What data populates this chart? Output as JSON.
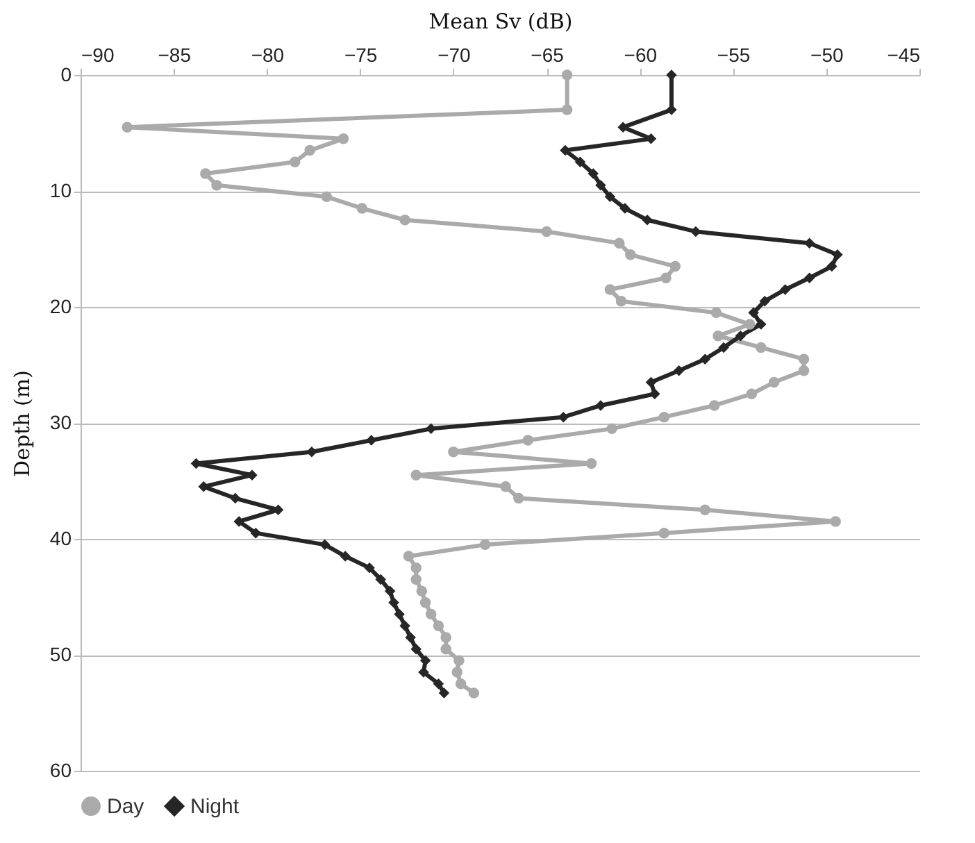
{
  "chart_data": {
    "type": "line",
    "xlabel": "Mean Sv (dB)",
    "ylabel": "Depth (m)",
    "xlim": [
      -90,
      -45
    ],
    "xticks": [
      -90,
      -85,
      -80,
      -75,
      -70,
      -65,
      -60,
      -55,
      -50,
      -45
    ],
    "ylim": [
      60,
      0
    ],
    "yticks": [
      0,
      10,
      20,
      30,
      40,
      50,
      60
    ],
    "grid": "y",
    "legend": "bottom",
    "series": [
      {
        "name": "Day",
        "color": "#aaaaaa",
        "marker": "circle",
        "x": [
          -63.9,
          -63.9,
          -87.5,
          -75.9,
          -77.7,
          -78.5,
          -83.3,
          -82.7,
          -76.8,
          -74.9,
          -72.6,
          -65.0,
          -61.1,
          -60.5,
          -58.1,
          -58.6,
          -61.6,
          -61.0,
          -55.9,
          -54.1,
          -55.8,
          -53.5,
          -51.2,
          -51.2,
          -52.8,
          -54.0,
          -56.0,
          -58.7,
          -61.5,
          -66.0,
          -70.0,
          -62.6,
          -72.0,
          -67.2,
          -66.5,
          -56.5,
          -49.5,
          -58.7,
          -68.3,
          -72.4,
          -72.0,
          -72.0,
          -71.7,
          -71.5,
          -71.2,
          -70.8,
          -70.4,
          -70.4,
          -69.7,
          -69.8,
          -69.6,
          -68.9
        ],
        "values": [
          0,
          3,
          4.5,
          5.5,
          6.5,
          7.5,
          8.5,
          9.5,
          10.5,
          11.5,
          12.5,
          13.5,
          14.5,
          15.5,
          16.5,
          17.5,
          18.5,
          19.5,
          20.5,
          21.5,
          22.5,
          23.5,
          24.5,
          25.5,
          26.5,
          27.5,
          28.5,
          29.5,
          30.5,
          31.5,
          32.5,
          33.5,
          34.5,
          35.5,
          36.5,
          37.5,
          38.5,
          39.5,
          40.5,
          41.5,
          42.5,
          43.5,
          44.5,
          45.5,
          46.5,
          47.5,
          48.5,
          49.5,
          50.5,
          51.5,
          52.5,
          53.3
        ]
      },
      {
        "name": "Night",
        "color": "#262626",
        "marker": "diamond",
        "x": [
          -58.3,
          -58.3,
          -60.9,
          -59.4,
          -64.0,
          -63.2,
          -62.5,
          -62.1,
          -61.6,
          -60.8,
          -59.6,
          -57.0,
          -50.9,
          -49.4,
          -49.7,
          -50.9,
          -52.2,
          -53.3,
          -53.9,
          -53.5,
          -54.6,
          -55.5,
          -56.5,
          -57.9,
          -59.4,
          -59.2,
          -62.1,
          -64.1,
          -71.2,
          -74.4,
          -77.6,
          -83.8,
          -80.8,
          -83.4,
          -81.7,
          -79.4,
          -81.5,
          -80.6,
          -76.9,
          -75.8,
          -74.5,
          -73.9,
          -73.4,
          -73.2,
          -72.9,
          -72.6,
          -72.3,
          -72.0,
          -71.5,
          -71.6,
          -70.8,
          -70.5
        ],
        "values": [
          0,
          3,
          4.5,
          5.5,
          6.5,
          7.5,
          8.5,
          9.5,
          10.5,
          11.5,
          12.5,
          13.5,
          14.5,
          15.5,
          16.5,
          17.5,
          18.5,
          19.5,
          20.5,
          21.5,
          22.5,
          23.5,
          24.5,
          25.5,
          26.5,
          27.5,
          28.5,
          29.5,
          30.5,
          31.5,
          32.5,
          33.5,
          34.5,
          35.5,
          36.5,
          37.5,
          38.5,
          39.5,
          40.5,
          41.5,
          42.5,
          43.5,
          44.5,
          45.5,
          46.5,
          47.5,
          48.5,
          49.5,
          50.5,
          51.5,
          52.5,
          53.3
        ]
      }
    ]
  }
}
